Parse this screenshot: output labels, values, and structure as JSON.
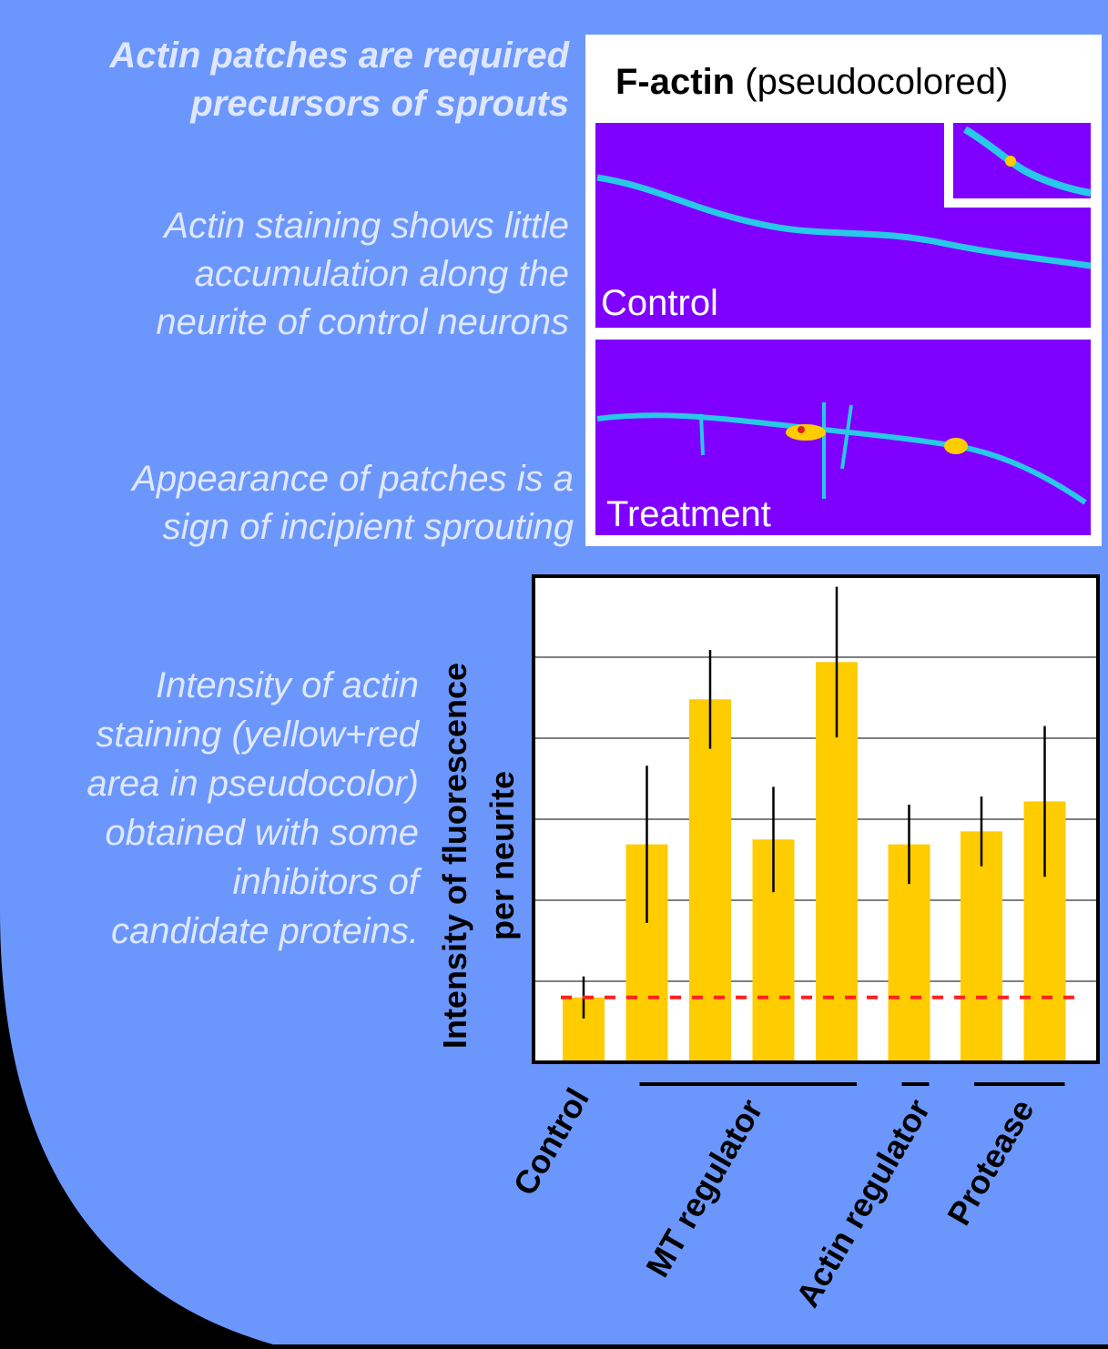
{
  "intro": {
    "heading_lines": [
      "Actin patches are required",
      "precursors of sprouts"
    ],
    "control_lines": [
      "Actin staining shows little",
      "accumulation along the",
      "neurite of control neurons"
    ],
    "patch_lines": [
      "Appearance of patches is a",
      "sign of incipient sprouting"
    ],
    "intensity_lines": [
      "Intensity of actin",
      "staining (yellow+red",
      "area in pseudocolor)",
      "obtained with some",
      "inhibitors of",
      "candidate proteins."
    ]
  },
  "figure": {
    "title_bold": "F-actin",
    "title_rest": "(pseudocolored)",
    "panels": [
      "Control",
      "Treatment"
    ]
  },
  "chart_data": {
    "type": "bar",
    "y_label_lines": [
      "Intensity of fluorescence",
      "per neurite"
    ],
    "ylim": [
      0,
      6
    ],
    "ygrid": [
      1,
      2,
      3,
      4,
      5
    ],
    "color": "#ffcc00",
    "error_color": "#000000",
    "reference_line": 0.8,
    "reference_color": "#ff2020",
    "groups": [
      {
        "name": "Control",
        "values": [
          0.8
        ],
        "errors": [
          0.26
        ]
      },
      {
        "name": "MT regulator",
        "values": [
          2.69,
          4.48,
          2.75,
          4.94
        ],
        "errors": [
          0.97,
          0.61,
          0.65,
          0.93
        ]
      },
      {
        "name": "Actin regulator",
        "values": [
          2.69
        ],
        "errors": [
          0.49
        ]
      },
      {
        "name": "Protease",
        "values": [
          2.85,
          3.22
        ],
        "errors": [
          0.43,
          0.93
        ]
      }
    ]
  }
}
